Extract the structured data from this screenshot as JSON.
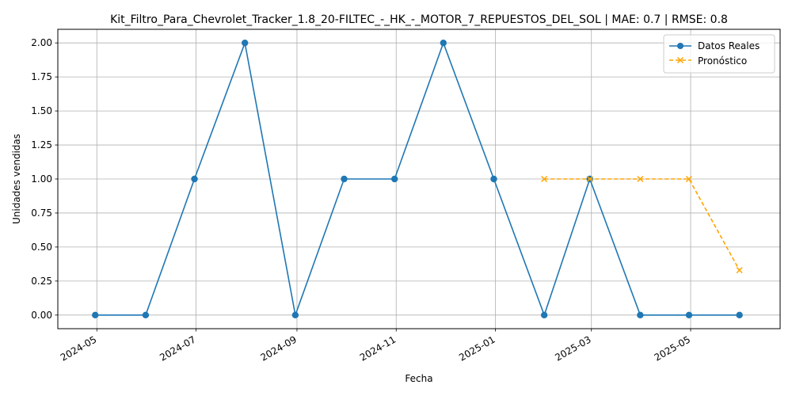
{
  "chart_data": {
    "type": "line",
    "title": "Kit_Filtro_Para_Chevrolet_Tracker_1.8_20-FILTEC_-_HK_-_MOTOR_7_REPUESTOS_DEL_SOL | MAE: 0.7 | RMSE: 0.8",
    "xlabel": "Fecha",
    "ylabel": "Unidades vendidas",
    "xlim": [
      "2024-04-07",
      "2025-06-25"
    ],
    "ylim": [
      -0.1,
      2.1
    ],
    "grid": true,
    "legend_position": "top-right",
    "x_ticks": [
      "2024-05",
      "2024-07",
      "2024-09",
      "2024-11",
      "2025-01",
      "2025-03",
      "2025-05"
    ],
    "x_tick_dates": [
      "2024-05-01",
      "2024-07-01",
      "2024-09-01",
      "2024-11-01",
      "2025-01-01",
      "2025-03-01",
      "2025-05-01"
    ],
    "y_ticks": [
      "0.00",
      "0.25",
      "0.50",
      "0.75",
      "1.00",
      "1.25",
      "1.50",
      "1.75",
      "2.00"
    ],
    "y_tick_values": [
      0,
      0.25,
      0.5,
      0.75,
      1.0,
      1.25,
      1.5,
      1.75,
      2.0
    ],
    "series": [
      {
        "name": "Datos Reales",
        "color": "#1f77b4",
        "style": "solid",
        "marker": "circle",
        "x": [
          "2024-04-30",
          "2024-05-31",
          "2024-06-30",
          "2024-07-31",
          "2024-08-31",
          "2024-09-30",
          "2024-10-31",
          "2024-11-30",
          "2024-12-31",
          "2025-01-31",
          "2025-02-28",
          "2025-03-31",
          "2025-04-30",
          "2025-05-31"
        ],
        "values": [
          0,
          0,
          1,
          2,
          0,
          1,
          1,
          2,
          1,
          0,
          1,
          0,
          0,
          0
        ]
      },
      {
        "name": "Pronóstico",
        "color": "#ffa500",
        "style": "dashed",
        "marker": "x",
        "x": [
          "2025-01-31",
          "2025-02-28",
          "2025-03-31",
          "2025-04-30",
          "2025-05-31"
        ],
        "values": [
          1,
          1,
          1,
          1,
          0.33
        ]
      }
    ]
  }
}
